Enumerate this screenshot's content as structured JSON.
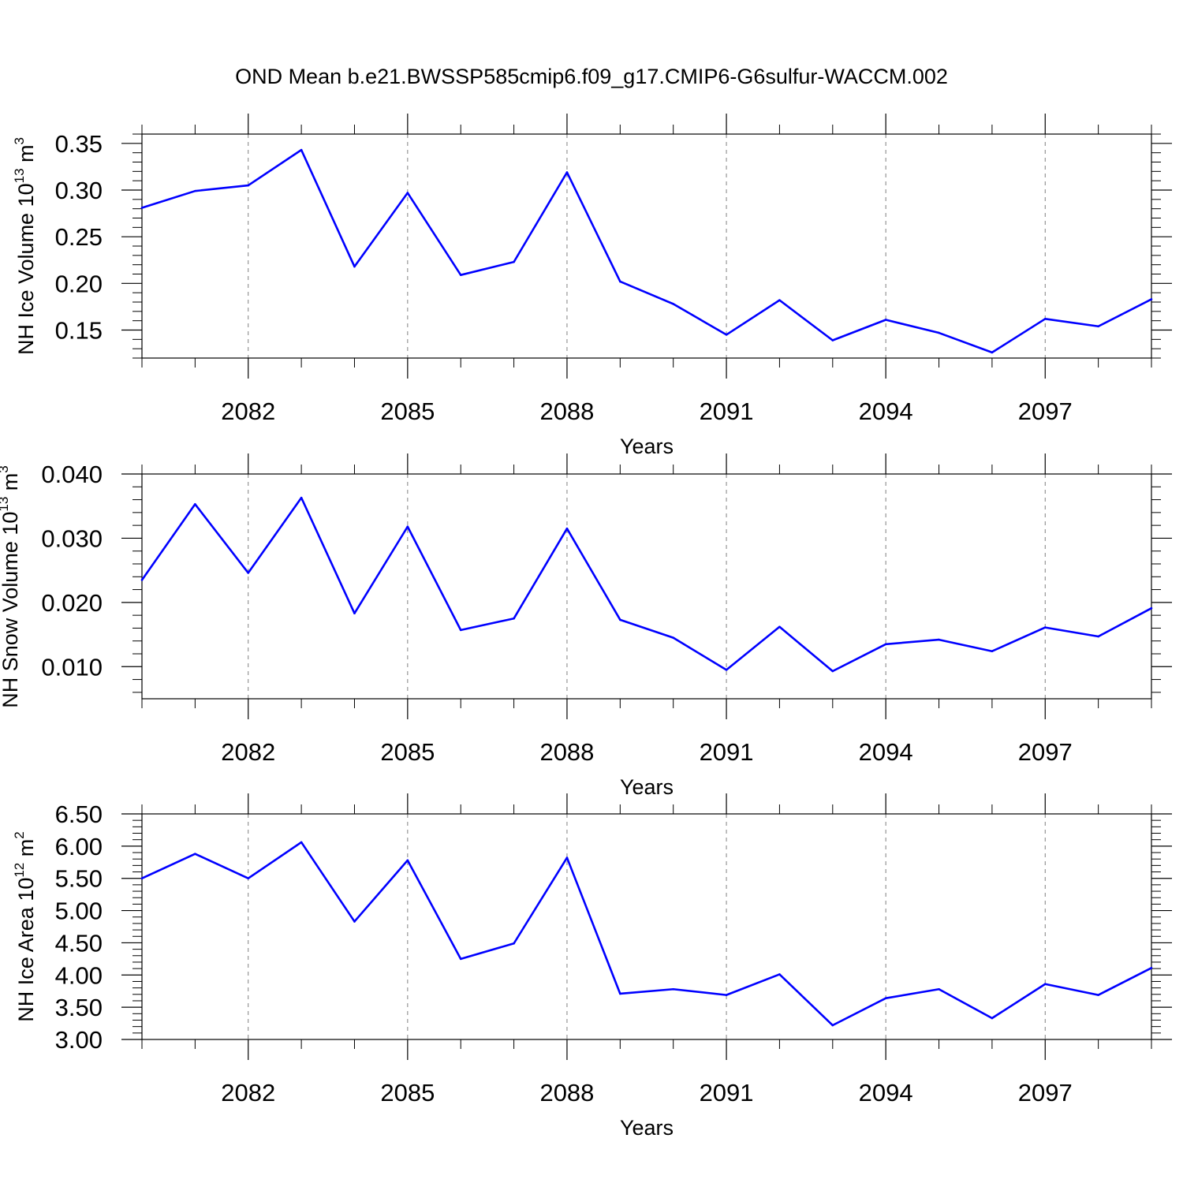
{
  "figure_title": "OND Mean b.e21.BWSSP585cmip6.f09_g17.CMIP6-G6sulfur-WACCM.002",
  "colors": {
    "series": "#0000ff",
    "axes": "#000000",
    "grid": "#808080"
  },
  "chart_data": [
    {
      "type": "line",
      "title": "OND Mean b.e21.BWSSP585cmip6.f09_g17.CMIP6-G6sulfur-WACCM.002",
      "xlabel": "Years",
      "ylabel": {
        "text": "NH Ice Volume 10",
        "exponent": "13",
        "unit": " m",
        "unit_exponent": "3"
      },
      "x": [
        2080,
        2081,
        2082,
        2083,
        2084,
        2085,
        2086,
        2087,
        2088,
        2089,
        2090,
        2091,
        2092,
        2093,
        2094,
        2095,
        2096,
        2097,
        2098,
        2099
      ],
      "values": [
        0.281,
        0.299,
        0.305,
        0.343,
        0.218,
        0.297,
        0.209,
        0.223,
        0.319,
        0.202,
        0.178,
        0.145,
        0.182,
        0.139,
        0.161,
        0.147,
        0.126,
        0.162,
        0.154,
        0.183
      ],
      "xlim": [
        2080,
        2099
      ],
      "ylim": [
        0.12,
        0.36
      ],
      "xticks": [
        2082,
        2085,
        2088,
        2091,
        2094,
        2097
      ],
      "xtick_labels": [
        "2082",
        "2085",
        "2088",
        "2091",
        "2094",
        "2097"
      ],
      "yticks": [
        0.15,
        0.2,
        0.25,
        0.3,
        0.35
      ],
      "ytick_labels": [
        "0.15",
        "0.20",
        "0.25",
        "0.30",
        "0.35"
      ],
      "grid": "vertical dashed at major x ticks"
    },
    {
      "type": "line",
      "xlabel": "Years",
      "ylabel": {
        "text": "NH Snow Volume 10",
        "exponent": "13",
        "unit": " m",
        "unit_exponent": "3"
      },
      "x": [
        2080,
        2081,
        2082,
        2083,
        2084,
        2085,
        2086,
        2087,
        2088,
        2089,
        2090,
        2091,
        2092,
        2093,
        2094,
        2095,
        2096,
        2097,
        2098,
        2099
      ],
      "values": [
        0.0235,
        0.0353,
        0.0246,
        0.0363,
        0.0183,
        0.0318,
        0.0157,
        0.0175,
        0.0315,
        0.0173,
        0.0145,
        0.0095,
        0.0162,
        0.0093,
        0.0135,
        0.0142,
        0.0124,
        0.0161,
        0.0147,
        0.0191
      ],
      "xlim": [
        2080,
        2099
      ],
      "ylim": [
        0.005,
        0.04
      ],
      "xticks": [
        2082,
        2085,
        2088,
        2091,
        2094,
        2097
      ],
      "xtick_labels": [
        "2082",
        "2085",
        "2088",
        "2091",
        "2094",
        "2097"
      ],
      "yticks": [
        0.01,
        0.02,
        0.03,
        0.04
      ],
      "ytick_labels": [
        "0.010",
        "0.020",
        "0.030",
        "0.040"
      ],
      "grid": "vertical dashed at major x ticks"
    },
    {
      "type": "line",
      "xlabel": "Years",
      "ylabel": {
        "text": "NH Ice Area 10",
        "exponent": "12",
        "unit": " m",
        "unit_exponent": "2"
      },
      "x": [
        2080,
        2081,
        2082,
        2083,
        2084,
        2085,
        2086,
        2087,
        2088,
        2089,
        2090,
        2091,
        2092,
        2093,
        2094,
        2095,
        2096,
        2097,
        2098,
        2099
      ],
      "values": [
        5.5,
        5.88,
        5.5,
        6.06,
        4.83,
        5.78,
        4.25,
        4.49,
        5.82,
        3.71,
        3.78,
        3.69,
        4.01,
        3.22,
        3.64,
        3.78,
        3.33,
        3.86,
        3.69,
        4.11
      ],
      "xlim": [
        2080,
        2099
      ],
      "ylim": [
        3.0,
        6.5
      ],
      "xticks": [
        2082,
        2085,
        2088,
        2091,
        2094,
        2097
      ],
      "xtick_labels": [
        "2082",
        "2085",
        "2088",
        "2091",
        "2094",
        "2097"
      ],
      "yticks": [
        3.0,
        3.5,
        4.0,
        4.5,
        5.0,
        5.5,
        6.0,
        6.5
      ],
      "ytick_labels": [
        "3.00",
        "3.50",
        "4.00",
        "4.50",
        "5.00",
        "5.50",
        "6.00",
        "6.50"
      ],
      "grid": "vertical dashed at major x ticks"
    }
  ]
}
